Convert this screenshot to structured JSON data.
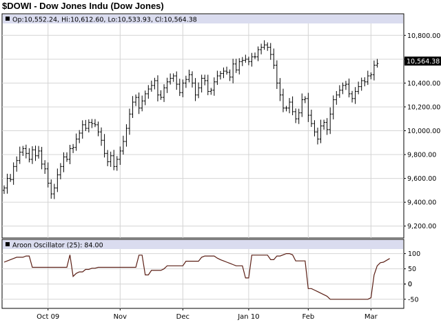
{
  "title": "$DOWI - Dow Jones Indu (Dow Jones)",
  "price_panel": {
    "legend": "Op:10,552.24, Hi:10,612.60, Lo:10,533.93, Cl:10,564.38",
    "last_price_label": "10,564.38",
    "yticks": [
      "9,200.00",
      "9,400.00",
      "9,600.00",
      "9,800.00",
      "10,000.00",
      "10,200.00",
      "10,400.00",
      "10,600.00",
      "10,800.00"
    ]
  },
  "oscillator_panel": {
    "legend": "Aroon Oscillator (25): 84.00",
    "yticks": [
      "100",
      "50",
      "0",
      "-50"
    ]
  },
  "xticks": [
    "Oct 09",
    "Nov",
    "Dec",
    "Jan 10",
    "Feb",
    "Mar"
  ],
  "colors": {
    "bars": "#000000",
    "oscillator_line": "#5a1e14",
    "legend_bg": "#dadcef",
    "grid": "#d4d4d4",
    "last_price_bg": "#000000"
  },
  "chart_data": [
    {
      "type": "ohlc",
      "title": "$DOWI - Dow Jones Indu (Dow Jones)",
      "ylim": [
        9100,
        10900
      ],
      "x_ticks": [
        "Oct 09",
        "Nov",
        "Dec",
        "Jan 10",
        "Feb",
        "Mar"
      ],
      "closes": [
        9520,
        9600,
        9590,
        9700,
        9750,
        9820,
        9850,
        9810,
        9760,
        9840,
        9790,
        9830,
        9720,
        9680,
        9560,
        9470,
        9520,
        9630,
        9700,
        9780,
        9760,
        9850,
        9860,
        9930,
        9980,
        10050,
        10020,
        10070,
        10060,
        10050,
        9990,
        9920,
        9810,
        9740,
        9790,
        9700,
        9760,
        9830,
        9910,
        10020,
        10140,
        10240,
        10280,
        10190,
        10250,
        10310,
        10350,
        10380,
        10420,
        10300,
        10280,
        10360,
        10410,
        10440,
        10460,
        10390,
        10320,
        10400,
        10430,
        10470,
        10400,
        10300,
        10360,
        10440,
        10420,
        10330,
        10340,
        10410,
        10460,
        10480,
        10500,
        10490,
        10450,
        10560,
        10510,
        10580,
        10590,
        10600,
        10580,
        10620,
        10620,
        10680,
        10700,
        10720,
        10700,
        10640,
        10550,
        10400,
        10300,
        10190,
        10190,
        10240,
        10160,
        10100,
        10150,
        10260,
        10270,
        10130,
        10060,
        9990,
        9930,
        10040,
        10070,
        10010,
        10140,
        10260,
        10300,
        10340,
        10380,
        10390,
        10310,
        10270,
        10330,
        10370,
        10420,
        10410,
        10460,
        10470,
        10550,
        10564
      ],
      "last_close": 10564.38
    },
    {
      "type": "line",
      "title": "Aroon Oscillator (25): 84.00",
      "ylim": [
        -80,
        115
      ],
      "y_ticks": [
        100,
        50,
        0,
        -50
      ],
      "values": [
        72,
        76,
        80,
        84,
        88,
        88,
        88,
        92,
        92,
        55,
        55,
        55,
        55,
        55,
        55,
        55,
        55,
        55,
        55,
        55,
        55,
        96,
        25,
        35,
        40,
        40,
        48,
        48,
        52,
        52,
        55,
        55,
        55,
        55,
        55,
        55,
        55,
        55,
        55,
        55,
        55,
        55,
        55,
        95,
        95,
        30,
        30,
        45,
        45,
        45,
        45,
        50,
        60,
        60,
        60,
        60,
        60,
        60,
        75,
        75,
        75,
        75,
        75,
        88,
        92,
        92,
        92,
        92,
        85,
        80,
        76,
        72,
        68,
        64,
        60,
        60,
        60,
        20,
        20,
        95,
        95,
        95,
        95,
        95,
        95,
        80,
        80,
        92,
        92,
        96,
        100,
        100,
        96,
        76,
        76,
        76,
        76,
        -15,
        -15,
        -20,
        -25,
        -30,
        -35,
        -40,
        -50,
        -50,
        -50,
        -50,
        -50,
        -50,
        -50,
        -50,
        -50,
        -50,
        -50,
        -50,
        -50,
        -45,
        30,
        60,
        70,
        72,
        78,
        84
      ]
    }
  ]
}
